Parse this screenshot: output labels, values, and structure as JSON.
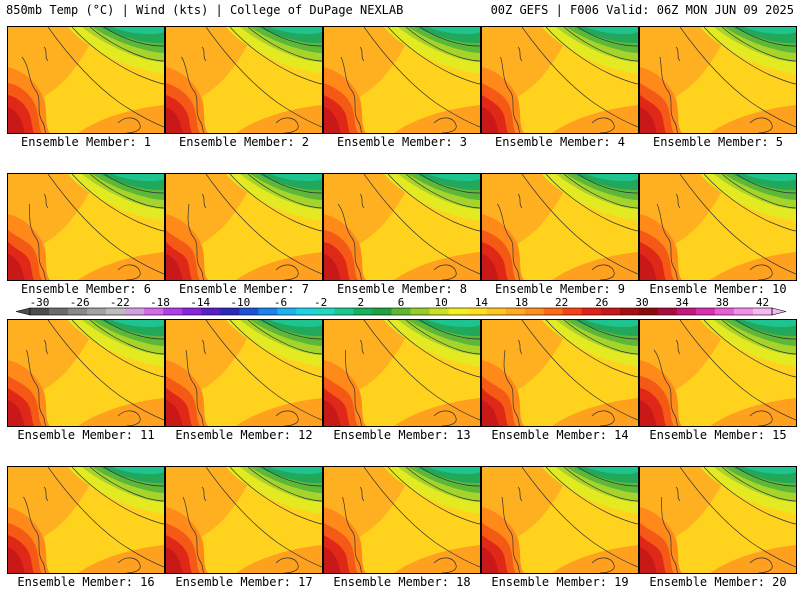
{
  "header": {
    "left": "850mb Temp (°C) | Wind (kts) | College of DuPage NEXLAB",
    "right": "00Z GEFS | F006 Valid: 06Z MON JUN 09 2025"
  },
  "panels": [
    {
      "label": "Ensemble Member: 1"
    },
    {
      "label": "Ensemble Member: 2"
    },
    {
      "label": "Ensemble Member: 3"
    },
    {
      "label": "Ensemble Member: 4"
    },
    {
      "label": "Ensemble Member: 5"
    },
    {
      "label": "Ensemble Member: 6"
    },
    {
      "label": "Ensemble Member: 7"
    },
    {
      "label": "Ensemble Member: 8"
    },
    {
      "label": "Ensemble Member: 9"
    },
    {
      "label": "Ensemble Member: 10"
    },
    {
      "label": "Ensemble Member: 11"
    },
    {
      "label": "Ensemble Member: 12"
    },
    {
      "label": "Ensemble Member: 13"
    },
    {
      "label": "Ensemble Member: 14"
    },
    {
      "label": "Ensemble Member: 15"
    },
    {
      "label": "Ensemble Member: 16"
    },
    {
      "label": "Ensemble Member: 17"
    },
    {
      "label": "Ensemble Member: 18"
    },
    {
      "label": "Ensemble Member: 19"
    },
    {
      "label": "Ensemble Member: 20"
    }
  ],
  "colorbar": {
    "ticks": [
      "-30",
      "-26",
      "-22",
      "-18",
      "-14",
      "-10",
      "-6",
      "-2",
      "2",
      "6",
      "10",
      "14",
      "18",
      "22",
      "26",
      "30",
      "34",
      "38",
      "42"
    ],
    "colors": [
      "#4d4d4d",
      "#6b6b6b",
      "#8a8a8a",
      "#a3a3a3",
      "#bdbdbd",
      "#d2a0e0",
      "#d36ae8",
      "#b23ee6",
      "#8a25d8",
      "#5a20c8",
      "#2a2ab8",
      "#1f50d8",
      "#1d82ea",
      "#1fb2f0",
      "#20d2e8",
      "#22d8c0",
      "#1ec890",
      "#19b060",
      "#20a040",
      "#60b830",
      "#98cc28",
      "#cce028",
      "#f2f020",
      "#ffe020",
      "#ffc820",
      "#ffac20",
      "#ff9020",
      "#ff6a18",
      "#f54418",
      "#e02418",
      "#c81818",
      "#a81010",
      "#8c0c0c",
      "#a80c40",
      "#c41880",
      "#d830b0",
      "#e860d8",
      "#f090e8",
      "#f4b8f0"
    ]
  }
}
